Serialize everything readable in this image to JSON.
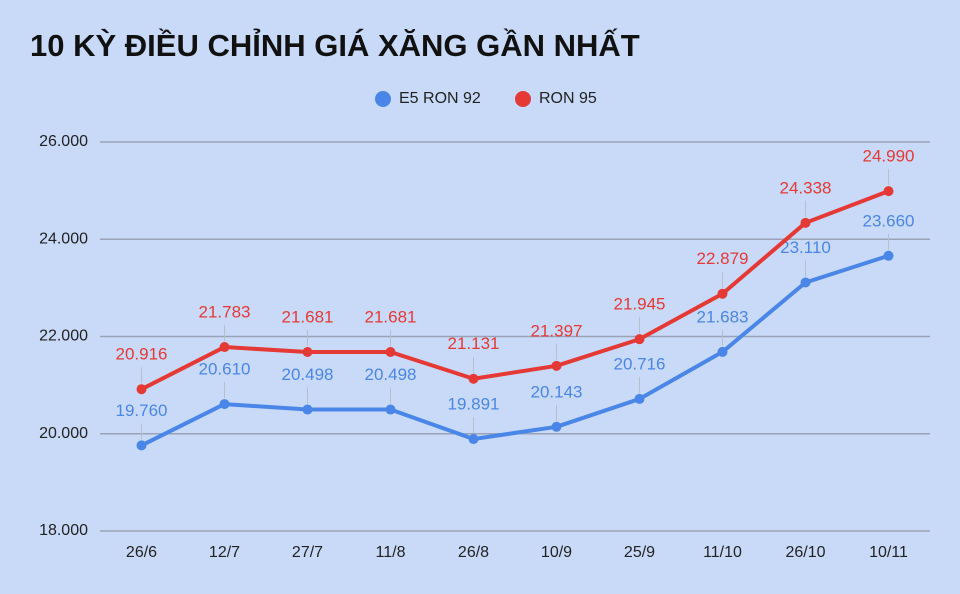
{
  "chart_data": {
    "type": "line",
    "title": "10 KỲ ĐIỀU CHỈNH GIÁ XĂNG GẦN NHẤT",
    "categories": [
      "26/6",
      "12/7",
      "27/7",
      "11/8",
      "26/8",
      "10/9",
      "25/9",
      "11/10",
      "26/10",
      "10/11"
    ],
    "series": [
      {
        "name": "E5 RON 92",
        "color": "#4a86e8",
        "values": [
          19760,
          20610,
          20498,
          20498,
          19891,
          20143,
          20716,
          21683,
          23110,
          23660
        ],
        "value_labels": [
          "19.760",
          "20.610",
          "20.498",
          "20.498",
          "19.891",
          "20.143",
          "20.716",
          "21.683",
          "23.110",
          "23.660"
        ]
      },
      {
        "name": "RON 95",
        "color": "#e53935",
        "values": [
          20916,
          21783,
          21681,
          21681,
          21131,
          21397,
          21945,
          22879,
          24338,
          24990
        ],
        "value_labels": [
          "20.916",
          "21.783",
          "21.681",
          "21.681",
          "21.131",
          "21.397",
          "21.945",
          "22.879",
          "24.338",
          "24.990"
        ]
      }
    ],
    "ylim": [
      18000,
      26000
    ],
    "yticks": [
      {
        "value": 18000,
        "label": "18.000"
      },
      {
        "value": 20000,
        "label": "20.000"
      },
      {
        "value": 22000,
        "label": "22.000"
      },
      {
        "value": 24000,
        "label": "24.000"
      },
      {
        "value": 26000,
        "label": "26.000"
      }
    ],
    "grid": true
  }
}
